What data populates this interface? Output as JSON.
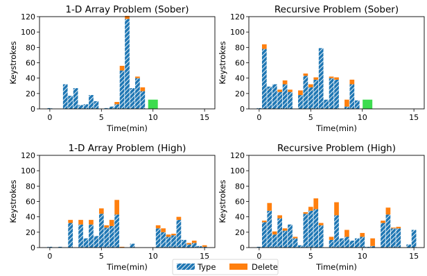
{
  "figure": {
    "legend_position": "bottom-center",
    "legend": [
      {
        "name": "Type",
        "color": "#1f77b4",
        "style": "hatched"
      },
      {
        "name": "Delete",
        "color": "#ff7f0e",
        "style": "solid"
      }
    ]
  },
  "chart_data": [
    {
      "type": "bar",
      "stacked": true,
      "title": "1-D Array Problem (Sober)",
      "xlabel": "Time(min)",
      "ylabel": "Keystrokes",
      "xlim": [
        -1,
        16
      ],
      "ylim": [
        0,
        120
      ],
      "xticks": [
        0,
        5,
        10,
        15
      ],
      "yticks": [
        0,
        20,
        40,
        60,
        80,
        100,
        120
      ],
      "bar_width": 0.45,
      "series": [
        {
          "name": "Type",
          "color": "#1f77b4",
          "hatch": true,
          "x": [
            0,
            0.5,
            1.5,
            2,
            2.5,
            3,
            3.5,
            4,
            4.5,
            5.5,
            6,
            6.5,
            7,
            7.5,
            8,
            8.5,
            9
          ],
          "values": [
            1,
            0,
            32,
            17,
            27,
            5,
            6,
            18,
            10,
            1,
            3,
            6,
            50,
            117,
            27,
            40,
            23
          ]
        },
        {
          "name": "Delete",
          "color": "#ff7f0e",
          "hatch": false,
          "x": [
            0,
            0.5,
            1.5,
            2,
            2.5,
            3,
            3.5,
            4,
            4.5,
            5.5,
            6,
            6.5,
            7,
            7.5,
            8,
            8.5,
            9
          ],
          "values": [
            0,
            0,
            0,
            0,
            0,
            0,
            0,
            0,
            0,
            0,
            0,
            3,
            6,
            4,
            0,
            2,
            5
          ]
        }
      ],
      "marker": {
        "x": 10,
        "value": 12,
        "color": "#3ddc4f"
      }
    },
    {
      "type": "bar",
      "stacked": true,
      "title": "Recursive Problem (Sober)",
      "xlabel": "Time(min)",
      "ylabel": "Keystrokes",
      "xlim": [
        -1,
        16
      ],
      "ylim": [
        0,
        120
      ],
      "xticks": [
        0,
        5,
        10,
        15
      ],
      "yticks": [
        0,
        20,
        40,
        60,
        80,
        100,
        120
      ],
      "bar_width": 0.45,
      "series": [
        {
          "name": "Type",
          "color": "#1f77b4",
          "hatch": true,
          "x": [
            0,
            0.5,
            1,
            1.5,
            2,
            2.5,
            3,
            3.5,
            4,
            4.5,
            5,
            5.5,
            6,
            6.5,
            7,
            7.5,
            8.5,
            9,
            9.5
          ],
          "values": [
            1,
            78,
            29,
            32,
            22,
            32,
            22,
            0,
            18,
            43,
            28,
            38,
            79,
            12,
            40,
            38,
            3,
            32,
            11
          ]
        },
        {
          "name": "Delete",
          "color": "#ff7f0e",
          "hatch": false,
          "x": [
            0,
            0.5,
            1,
            1.5,
            2,
            2.5,
            3,
            3.5,
            4,
            4.5,
            5,
            5.5,
            6,
            6.5,
            7,
            7.5,
            8.5,
            9,
            9.5
          ],
          "values": [
            0,
            6,
            0,
            0,
            3,
            5,
            3,
            0,
            6,
            3,
            4,
            3,
            0,
            0,
            2,
            3,
            9,
            6,
            0
          ]
        }
      ],
      "marker": {
        "x": 10.5,
        "value": 12,
        "color": "#3ddc4f"
      }
    },
    {
      "type": "bar",
      "stacked": true,
      "title": "1-D Array Problem (High)",
      "xlabel": "Time(min)",
      "ylabel": "Keystrokes",
      "xlim": [
        -1,
        16
      ],
      "ylim": [
        0,
        120
      ],
      "xticks": [
        0,
        5,
        10,
        15
      ],
      "yticks": [
        0,
        20,
        40,
        60,
        80,
        100,
        120
      ],
      "bar_width": 0.45,
      "series": [
        {
          "name": "Type",
          "color": "#1f77b4",
          "hatch": true,
          "x": [
            0,
            0.5,
            1,
            1.5,
            2,
            2.5,
            3,
            3.5,
            4,
            4.5,
            5,
            5.5,
            6,
            6.5,
            7,
            8,
            10.5,
            11,
            11.5,
            12,
            12.5,
            13,
            13.5,
            14,
            14.5,
            15
          ],
          "values": [
            1,
            0,
            1,
            0,
            32,
            0,
            30,
            12,
            30,
            15,
            44,
            26,
            28,
            43,
            0,
            5,
            25,
            20,
            14,
            16,
            36,
            10,
            4,
            6,
            2,
            1
          ]
        },
        {
          "name": "Delete",
          "color": "#ff7f0e",
          "hatch": false,
          "x": [
            0,
            0.5,
            1,
            1.5,
            2,
            2.5,
            3,
            3.5,
            4,
            4.5,
            5,
            5.5,
            6,
            6.5,
            7,
            8,
            10.5,
            11,
            11.5,
            12,
            12.5,
            13,
            13.5,
            14,
            14.5,
            15
          ],
          "values": [
            0,
            0,
            0,
            0,
            4,
            0,
            6,
            0,
            6,
            0,
            7,
            3,
            8,
            19,
            1,
            0,
            4,
            5,
            3,
            2,
            4,
            0,
            2,
            3,
            0,
            2
          ]
        }
      ]
    },
    {
      "type": "bar",
      "stacked": true,
      "title": "Recursive Problem (High)",
      "xlabel": "Time(min)",
      "ylabel": "Keystrokes",
      "xlim": [
        -1,
        16
      ],
      "ylim": [
        0,
        120
      ],
      "xticks": [
        0,
        5,
        10,
        15
      ],
      "yticks": [
        0,
        20,
        40,
        60,
        80,
        100,
        120
      ],
      "bar_width": 0.45,
      "series": [
        {
          "name": "Type",
          "color": "#1f77b4",
          "hatch": true,
          "x": [
            0,
            0.5,
            1,
            1.5,
            2,
            2.5,
            3,
            3.5,
            4,
            4.5,
            5,
            5.5,
            6,
            7,
            7.5,
            8,
            8.5,
            9,
            9.5,
            10,
            10.5,
            11,
            12,
            12.5,
            13,
            13.5,
            14.5,
            15
          ],
          "values": [
            1,
            33,
            48,
            17,
            38,
            22,
            30,
            12,
            3,
            44,
            48,
            50,
            29,
            10,
            42,
            12,
            14,
            9,
            12,
            14,
            1,
            2,
            32,
            43,
            25,
            25,
            4,
            23
          ]
        },
        {
          "name": "Delete",
          "color": "#ff7f0e",
          "hatch": false,
          "x": [
            0,
            0.5,
            1,
            1.5,
            2,
            2.5,
            3,
            3.5,
            4,
            4.5,
            5,
            5.5,
            6,
            7,
            7.5,
            8,
            8.5,
            9,
            9.5,
            10,
            10.5,
            11,
            12,
            12.5,
            13,
            13.5,
            14.5,
            15
          ],
          "values": [
            0,
            2,
            10,
            4,
            4,
            3,
            0,
            2,
            0,
            2,
            5,
            14,
            3,
            4,
            17,
            0,
            9,
            0,
            0,
            5,
            0,
            10,
            3,
            9,
            1,
            2,
            0,
            0
          ]
        }
      ]
    }
  ]
}
